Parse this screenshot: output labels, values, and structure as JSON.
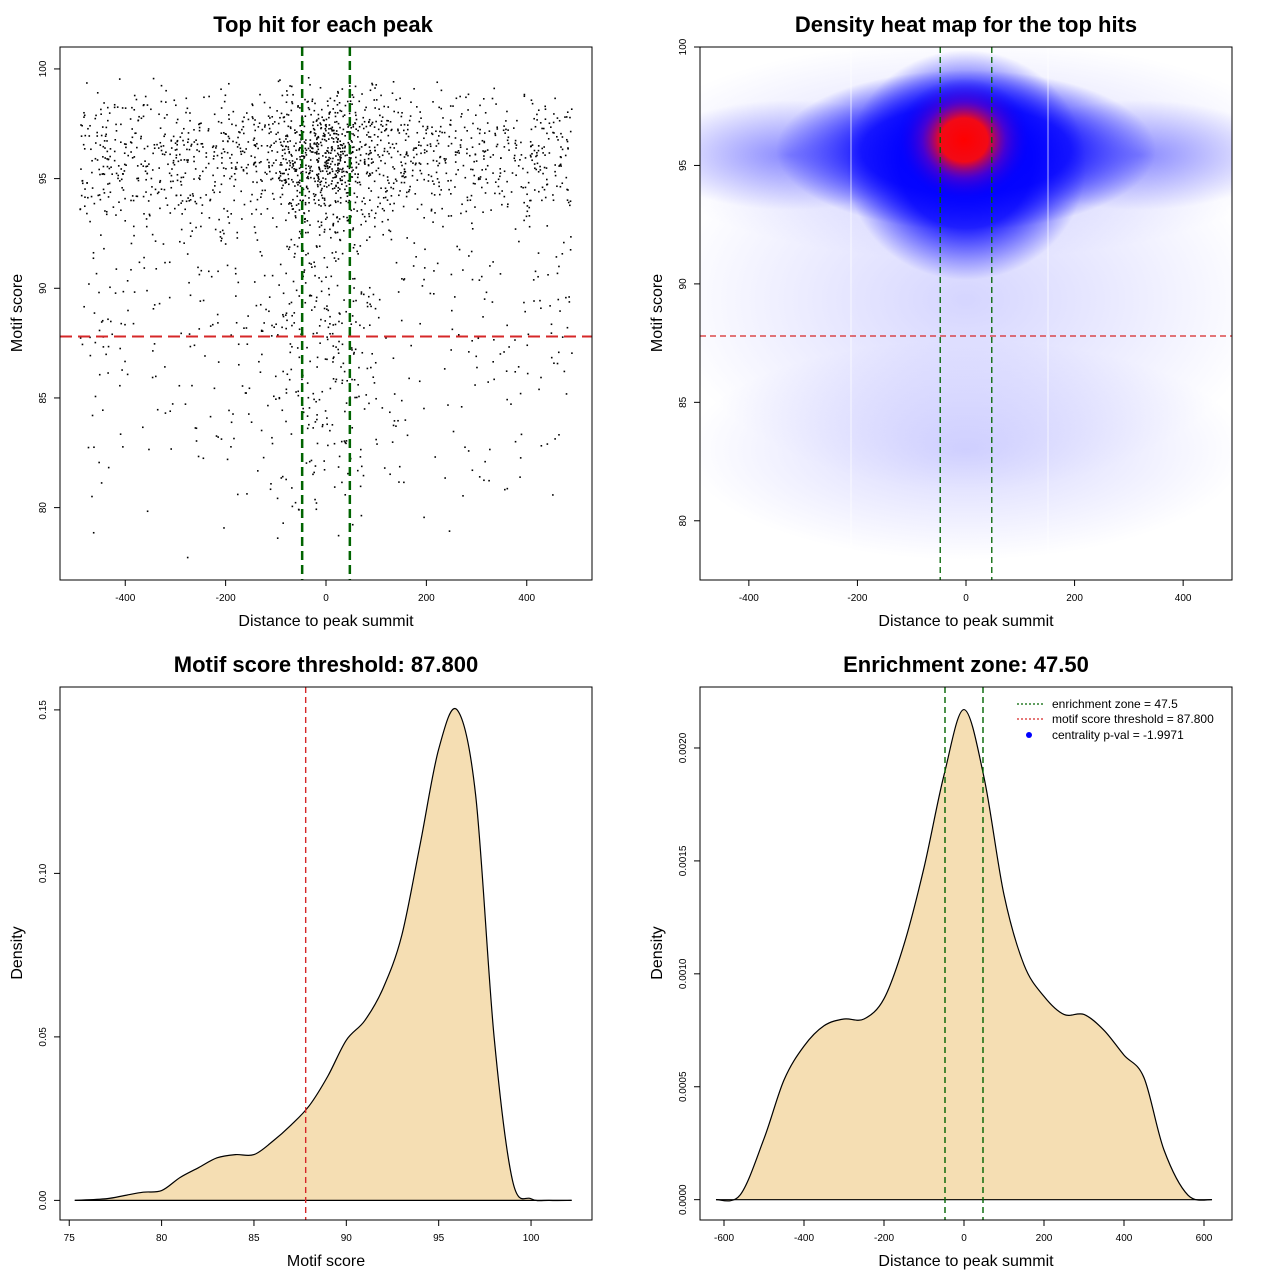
{
  "colors": {
    "threshold_red": "#d62728",
    "zone_green": "#006400",
    "fill_wheat": "#f5deb3",
    "heat_blue": "#0000ff",
    "heat_red": "#ff0000",
    "legend_dot": "#0000ff"
  },
  "chart_data": [
    {
      "id": "scatter",
      "type": "scatter",
      "title": "Top hit for each peak",
      "xlabel": "Distance to peak summit",
      "ylabel": "Motif score",
      "xlim": [
        -530,
        530
      ],
      "ylim": [
        76.7,
        101.0
      ],
      "xticks": [
        -400,
        -200,
        0,
        200,
        400
      ],
      "xtick_labels": [
        "-400",
        "-200",
        "0",
        "200",
        "400"
      ],
      "yticks": [
        80,
        85,
        90,
        95,
        100
      ],
      "ytick_labels": [
        "80",
        "85",
        "90",
        "95",
        "100"
      ],
      "hlines": [
        87.8
      ],
      "vlines": [
        -47.5,
        47.5
      ],
      "n_points": 2400
    },
    {
      "id": "heatmap",
      "type": "heatmap",
      "title": "Density heat map for the top hits",
      "xlabel": "Distance to peak summit",
      "ylabel": "Motif score",
      "xlim": [
        -490,
        490
      ],
      "ylim": [
        77.5,
        100.0
      ],
      "xticks": [
        -400,
        -200,
        0,
        200,
        400
      ],
      "xtick_labels": [
        "-400",
        "-200",
        "0",
        "200",
        "400"
      ],
      "yticks": [
        80,
        85,
        90,
        95,
        100
      ],
      "ytick_labels": [
        "80",
        "85",
        "90",
        "95",
        "100"
      ],
      "hlines": [
        87.8
      ],
      "vlines": [
        -47.5,
        47.5
      ],
      "hotspot": {
        "x": 0,
        "y": 96
      }
    },
    {
      "id": "score_density",
      "type": "area",
      "title": "Motif score threshold: 87.800",
      "xlabel": "Motif score",
      "ylabel": "Density",
      "xlim": [
        74.5,
        103.3
      ],
      "ylim": [
        -0.006,
        0.157
      ],
      "xticks": [
        75,
        80,
        85,
        90,
        95,
        100
      ],
      "xtick_labels": [
        "75",
        "80",
        "85",
        "90",
        "95",
        "100"
      ],
      "yticks": [
        0.0,
        0.05,
        0.1,
        0.15
      ],
      "ytick_labels": [
        "0.00",
        "0.05",
        "0.10",
        "0.15"
      ],
      "vlines": [
        87.8
      ],
      "x": [
        75.3,
        77,
        78,
        79,
        80,
        81,
        82,
        83,
        84,
        85,
        86,
        87,
        88,
        89,
        90,
        91,
        92,
        93,
        94,
        95,
        96,
        97,
        98,
        99,
        100,
        101,
        102.2
      ],
      "y": [
        0.0,
        0.0005,
        0.0015,
        0.0025,
        0.003,
        0.007,
        0.01,
        0.013,
        0.014,
        0.014,
        0.018,
        0.023,
        0.029,
        0.038,
        0.049,
        0.055,
        0.065,
        0.081,
        0.109,
        0.138,
        0.15,
        0.124,
        0.05,
        0.006,
        0.0005,
        0.0,
        0.0
      ]
    },
    {
      "id": "distance_density",
      "type": "area",
      "title": "Enrichment zone: 47.50",
      "xlabel": "Distance to peak summit",
      "ylabel": "Density",
      "xlim": [
        -660,
        670
      ],
      "ylim": [
        -9e-05,
        0.00227
      ],
      "xticks": [
        -600,
        -400,
        -200,
        0,
        200,
        400,
        600
      ],
      "xtick_labels": [
        "-600",
        "-400",
        "-200",
        "0",
        "200",
        "400",
        "600"
      ],
      "yticks": [
        0.0,
        0.0005,
        0.001,
        0.0015,
        0.002
      ],
      "ytick_labels": [
        "0.0000",
        "0.0005",
        "0.0010",
        "0.0015",
        "0.0020"
      ],
      "vlines": [
        -47.5,
        47.5
      ],
      "x": [
        -620,
        -560,
        -500,
        -450,
        -400,
        -350,
        -300,
        -250,
        -200,
        -150,
        -100,
        -50,
        0,
        50,
        100,
        150,
        200,
        250,
        300,
        350,
        400,
        450,
        500,
        560,
        620
      ],
      "y": [
        0.0,
        2e-05,
        0.00027,
        0.00053,
        0.00068,
        0.00077,
        0.0008,
        0.0008,
        0.00089,
        0.00113,
        0.00147,
        0.00188,
        0.00217,
        0.00187,
        0.00135,
        0.00104,
        0.0009,
        0.00082,
        0.00082,
        0.00075,
        0.00064,
        0.00054,
        0.00022,
        2e-05,
        0.0
      ],
      "legend": {
        "placement": "top-right",
        "entries": [
          {
            "label": "enrichment zone = 47.5",
            "style": "dotted",
            "color": "#006400"
          },
          {
            "label": "motif score threshold = 87.800",
            "style": "dotted",
            "color": "#d62728"
          },
          {
            "label": "centrality p-val = -1.9971",
            "style": "dot",
            "color": "#0000ff"
          }
        ]
      }
    }
  ]
}
